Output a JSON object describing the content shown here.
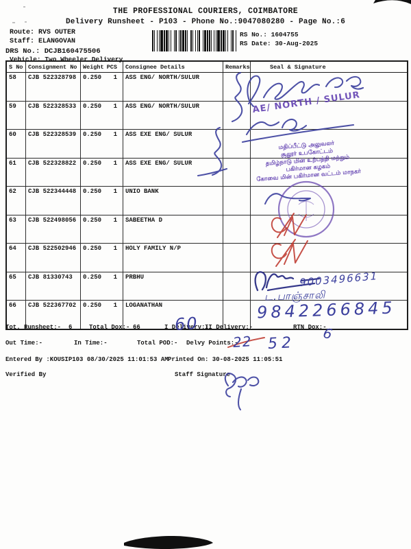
{
  "header": {
    "title": "THE PROFESSIONAL COURIERS, COIMBATORE",
    "subtitle": "Delivery Runsheet - P103 - Phone No.:9047080280 - Page No.:6"
  },
  "meta": {
    "route_label": "Route:",
    "route_value": "RVS OUTER",
    "staff_label": "Staff:",
    "staff_value": "ELANGOVAN",
    "drs_label": "DRS No.:",
    "drs_value": "DCJB160475506",
    "vehicle_label": "Vehicle:",
    "vehicle_value": "Two Wheeler Delivery",
    "rs_no_label": "RS No.:",
    "rs_no_value": "1604755",
    "rs_date_label": "RS Date:",
    "rs_date_value": "30-Aug-2025"
  },
  "table": {
    "headers": {
      "s_no": "S No",
      "consignment_no": "Consignment No",
      "weight": "Weight",
      "pcs": "PCS",
      "consignee": "Consignee Details",
      "remarks": "Remarks",
      "seal": "Seal & Signature"
    },
    "rows": [
      {
        "s_no": "58",
        "consignment_no": "CJB 522328798",
        "weight": "0.250",
        "pcs": "1",
        "consignee": "ASS ENG/ NORTH/SULUR"
      },
      {
        "s_no": "59",
        "consignment_no": "CJB 522328533",
        "weight": "0.250",
        "pcs": "1",
        "consignee": "ASS ENG/ NORTH/SULUR"
      },
      {
        "s_no": "60",
        "consignment_no": "CJB 522328539",
        "weight": "0.250",
        "pcs": "1",
        "consignee": "ASS EXE ENG/ SULUR"
      },
      {
        "s_no": "61",
        "consignment_no": "CJB 522328822",
        "weight": "0.250",
        "pcs": "1",
        "consignee": "ASS EXE ENG/ SULUR"
      },
      {
        "s_no": "62",
        "consignment_no": "CJB 522344448",
        "weight": "0.250",
        "pcs": "1",
        "consignee": "UNIO BANK"
      },
      {
        "s_no": "63",
        "consignment_no": "CJB 522498056",
        "weight": "0.250",
        "pcs": "1",
        "consignee": "SABEETHA D"
      },
      {
        "s_no": "64",
        "consignment_no": "CJB 522502946",
        "weight": "0.250",
        "pcs": "1",
        "consignee": "HOLY FAMILY N/P"
      },
      {
        "s_no": "65",
        "consignment_no": "CJB 81330743",
        "weight": "0.250",
        "pcs": "1",
        "consignee": "PRBHU"
      },
      {
        "s_no": "66",
        "consignment_no": "CJB 522367702",
        "weight": "0.250",
        "pcs": "1",
        "consignee": "LOGANATHAN"
      }
    ]
  },
  "annotations": {
    "ae_stamp": "AE/ NORTH / SULUR",
    "tamil_stamp_lines": [
      "மதிப்பீட்டு அலுவலர்",
      "சூலூர் உபகோட்டம்",
      "தமிழ்நாடு மின் உற்பத்தி மற்றும்",
      "பகிர்மான கழகம்",
      "கோவை மின் பகிர்மான வட்டம் மாநகர்"
    ],
    "phone_row65": "9003496631",
    "name_row66": "ட.பாஞ்சாலி",
    "phone_row66": "9842266845",
    "i_delivery_handwritten": "60",
    "rtn_dox_handwritten": "6",
    "delvy_points_crossed_out": "22",
    "delvy_points_handwritten": "52"
  },
  "footer": {
    "tot_runsheet_label": "Tot. Runsheet:-",
    "tot_runsheet_value": "6",
    "total_dox_label": "Total Dox:-",
    "total_dox_value": "66",
    "i_delivery_label": "I Delivery:-",
    "ii_delivery_label": "II Delivery:-",
    "rtn_dox_label": "RTN Dox:-",
    "out_time_label": "Out Time:-",
    "in_time_label": "In Time:-",
    "total_pod_label": "Total POD:-",
    "delvy_points_label": "Delvy Points:-",
    "entered_by": "Entered By :KOUSIP103 08/30/2025 11:01:53 AM",
    "printed_on": "Printed On: 30-08-2025 11:05:51",
    "verified_by_label": "Verified By",
    "staff_signature_label": "Staff Signature"
  },
  "colors": {
    "print_black": "#151515",
    "ink_blue": "#3b3f9d",
    "stamp_purple": "#5f3db0",
    "ink_red": "#bf3a30"
  }
}
